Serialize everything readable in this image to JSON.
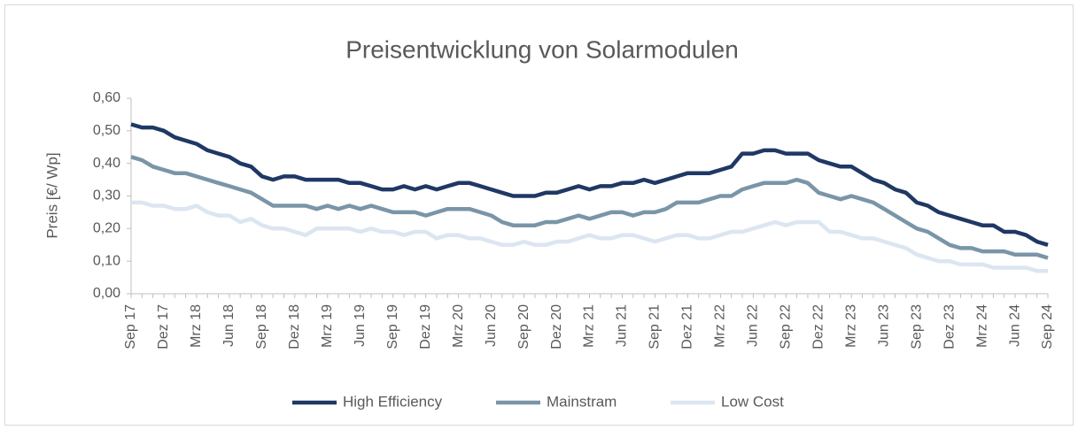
{
  "chart_data": {
    "type": "line",
    "title": "Preisentwicklung von Solarmodulen",
    "y_label": "Preis [€/ Wp]",
    "categories": [
      "Sep 17",
      null,
      null,
      "Dez 17",
      null,
      null,
      "Mrz 18",
      null,
      null,
      "Jun 18",
      null,
      null,
      "Sep 18",
      null,
      null,
      "Dez 18",
      null,
      null,
      "Mrz 19",
      null,
      null,
      "Jun 19",
      null,
      null,
      "Sep 19",
      null,
      null,
      "Dez 19",
      null,
      null,
      "Mrz 20",
      null,
      null,
      "Jun 20",
      null,
      null,
      "Sep 20",
      null,
      null,
      "Dez 20",
      null,
      null,
      "Mrz 21",
      null,
      null,
      "Jun 21",
      null,
      null,
      "Sep 21",
      null,
      null,
      "Dez 21",
      null,
      null,
      "Mrz 22",
      null,
      null,
      "Jun 22",
      null,
      null,
      "Sep 22",
      null,
      null,
      "Dez 22",
      null,
      null,
      "Mrz 23",
      null,
      null,
      "Jun 23",
      null,
      null,
      "Sep 23",
      null,
      null,
      "Dez 23",
      null,
      null,
      "Mrz 24",
      null,
      null,
      "Jun 24",
      null,
      null,
      "Sep 24"
    ],
    "series": [
      {
        "name": "High Efficiency",
        "color": "#1f3864",
        "values": [
          0.52,
          0.51,
          0.51,
          0.5,
          0.48,
          0.47,
          0.46,
          0.44,
          0.43,
          0.42,
          0.4,
          0.39,
          0.36,
          0.35,
          0.36,
          0.36,
          0.35,
          0.35,
          0.35,
          0.35,
          0.34,
          0.34,
          0.33,
          0.32,
          0.32,
          0.33,
          0.32,
          0.33,
          0.32,
          0.33,
          0.34,
          0.34,
          0.33,
          0.32,
          0.31,
          0.3,
          0.3,
          0.3,
          0.31,
          0.31,
          0.32,
          0.33,
          0.32,
          0.33,
          0.33,
          0.34,
          0.34,
          0.35,
          0.34,
          0.35,
          0.36,
          0.37,
          0.37,
          0.37,
          0.38,
          0.39,
          0.43,
          0.43,
          0.44,
          0.44,
          0.43,
          0.43,
          0.43,
          0.41,
          0.4,
          0.39,
          0.39,
          0.37,
          0.35,
          0.34,
          0.32,
          0.31,
          0.28,
          0.27,
          0.25,
          0.24,
          0.23,
          0.22,
          0.21,
          0.21,
          0.19,
          0.19,
          0.18,
          0.16,
          0.15
        ]
      },
      {
        "name": "Mainstram",
        "color": "#7a95a8",
        "values": [
          0.42,
          0.41,
          0.39,
          0.38,
          0.37,
          0.37,
          0.36,
          0.35,
          0.34,
          0.33,
          0.32,
          0.31,
          0.29,
          0.27,
          0.27,
          0.27,
          0.27,
          0.26,
          0.27,
          0.26,
          0.27,
          0.26,
          0.27,
          0.26,
          0.25,
          0.25,
          0.25,
          0.24,
          0.25,
          0.26,
          0.26,
          0.26,
          0.25,
          0.24,
          0.22,
          0.21,
          0.21,
          0.21,
          0.22,
          0.22,
          0.23,
          0.24,
          0.23,
          0.24,
          0.25,
          0.25,
          0.24,
          0.25,
          0.25,
          0.26,
          0.28,
          0.28,
          0.28,
          0.29,
          0.3,
          0.3,
          0.32,
          0.33,
          0.34,
          0.34,
          0.34,
          0.35,
          0.34,
          0.31,
          0.3,
          0.29,
          0.3,
          0.29,
          0.28,
          0.26,
          0.24,
          0.22,
          0.2,
          0.19,
          0.17,
          0.15,
          0.14,
          0.14,
          0.13,
          0.13,
          0.13,
          0.12,
          0.12,
          0.12,
          0.11
        ]
      },
      {
        "name": "Low Cost",
        "color": "#dce6f0",
        "values": [
          0.28,
          0.28,
          0.27,
          0.27,
          0.26,
          0.26,
          0.27,
          0.25,
          0.24,
          0.24,
          0.22,
          0.23,
          0.21,
          0.2,
          0.2,
          0.19,
          0.18,
          0.2,
          0.2,
          0.2,
          0.2,
          0.19,
          0.2,
          0.19,
          0.19,
          0.18,
          0.19,
          0.19,
          0.17,
          0.18,
          0.18,
          0.17,
          0.17,
          0.16,
          0.15,
          0.15,
          0.16,
          0.15,
          0.15,
          0.16,
          0.16,
          0.17,
          0.18,
          0.17,
          0.17,
          0.18,
          0.18,
          0.17,
          0.16,
          0.17,
          0.18,
          0.18,
          0.17,
          0.17,
          0.18,
          0.19,
          0.19,
          0.2,
          0.21,
          0.22,
          0.21,
          0.22,
          0.22,
          0.22,
          0.19,
          0.19,
          0.18,
          0.17,
          0.17,
          0.16,
          0.15,
          0.14,
          0.12,
          0.11,
          0.1,
          0.1,
          0.09,
          0.09,
          0.09,
          0.08,
          0.08,
          0.08,
          0.08,
          0.07,
          0.07
        ]
      }
    ],
    "ylim": [
      0,
      0.6
    ],
    "yticks": [
      {
        "value": 0,
        "label": "0,00"
      },
      {
        "value": 0.1,
        "label": "0,10"
      },
      {
        "value": 0.2,
        "label": "0,20"
      },
      {
        "value": 0.3,
        "label": "0,30"
      },
      {
        "value": 0.4,
        "label": "0,40"
      },
      {
        "value": 0.5,
        "label": "0,50"
      },
      {
        "value": 0.6,
        "label": "0,60"
      }
    ],
    "legend": "bottom"
  }
}
